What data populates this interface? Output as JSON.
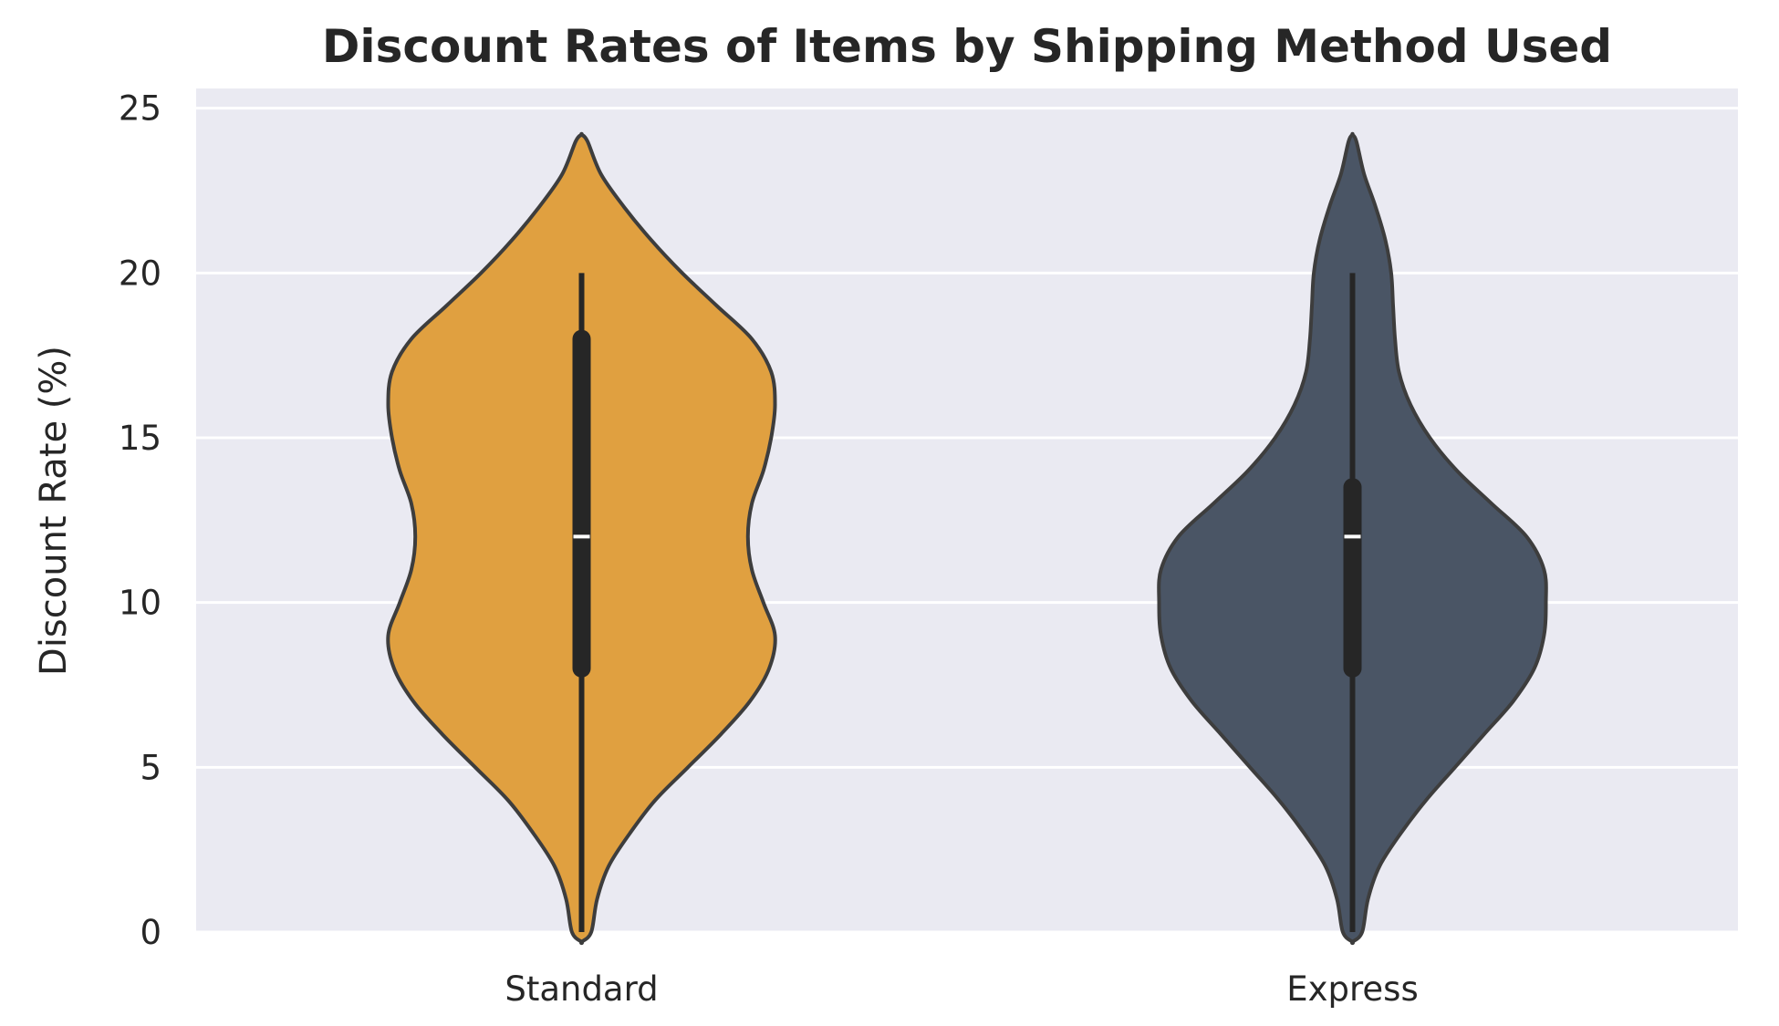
{
  "chart_data": {
    "type": "violin",
    "title": "Discount Rates of Items by Shipping Method Used",
    "xlabel": "",
    "ylabel": "Discount Rate (%)",
    "ylim": [
      0,
      25.6
    ],
    "yticks": [
      0,
      5,
      10,
      15,
      20,
      25
    ],
    "grid": true,
    "background": "#eaeaf2",
    "categories": [
      "Standard",
      "Express"
    ],
    "series": [
      {
        "category": "Standard",
        "color": "#e0a040",
        "min": 0,
        "q1": 8,
        "median": 12,
        "q3": 18,
        "max": 20,
        "density": [
          [
            -0.3,
            0.0
          ],
          [
            0.0,
            0.05
          ],
          [
            1.0,
            0.08
          ],
          [
            2.0,
            0.14
          ],
          [
            3.0,
            0.25
          ],
          [
            4.0,
            0.38
          ],
          [
            5.0,
            0.55
          ],
          [
            6.0,
            0.72
          ],
          [
            7.0,
            0.87
          ],
          [
            8.0,
            0.97
          ],
          [
            9.0,
            1.0
          ],
          [
            10.0,
            0.94
          ],
          [
            11.0,
            0.88
          ],
          [
            12.0,
            0.86
          ],
          [
            13.0,
            0.88
          ],
          [
            14.0,
            0.94
          ],
          [
            15.0,
            0.98
          ],
          [
            16.0,
            1.0
          ],
          [
            17.0,
            0.98
          ],
          [
            18.0,
            0.88
          ],
          [
            19.0,
            0.7
          ],
          [
            20.0,
            0.52
          ],
          [
            21.0,
            0.36
          ],
          [
            22.0,
            0.22
          ],
          [
            23.0,
            0.1
          ],
          [
            24.0,
            0.03
          ],
          [
            24.2,
            0.0
          ]
        ]
      },
      {
        "category": "Express",
        "color": "#4a5565",
        "min": 0,
        "q1": 8,
        "median": 12,
        "q3": 13.5,
        "max": 20,
        "density": [
          [
            -0.3,
            0.0
          ],
          [
            0.0,
            0.05
          ],
          [
            1.0,
            0.08
          ],
          [
            2.0,
            0.14
          ],
          [
            3.0,
            0.25
          ],
          [
            4.0,
            0.38
          ],
          [
            5.0,
            0.53
          ],
          [
            6.0,
            0.68
          ],
          [
            7.0,
            0.83
          ],
          [
            8.0,
            0.94
          ],
          [
            9.0,
            0.99
          ],
          [
            10.0,
            1.0
          ],
          [
            11.0,
            0.99
          ],
          [
            12.0,
            0.9
          ],
          [
            13.0,
            0.72
          ],
          [
            14.0,
            0.54
          ],
          [
            15.0,
            0.4
          ],
          [
            16.0,
            0.3
          ],
          [
            17.0,
            0.24
          ],
          [
            18.0,
            0.22
          ],
          [
            19.0,
            0.21
          ],
          [
            20.0,
            0.2
          ],
          [
            21.0,
            0.17
          ],
          [
            22.0,
            0.12
          ],
          [
            23.0,
            0.06
          ],
          [
            24.0,
            0.02
          ],
          [
            24.2,
            0.0
          ]
        ]
      }
    ]
  }
}
